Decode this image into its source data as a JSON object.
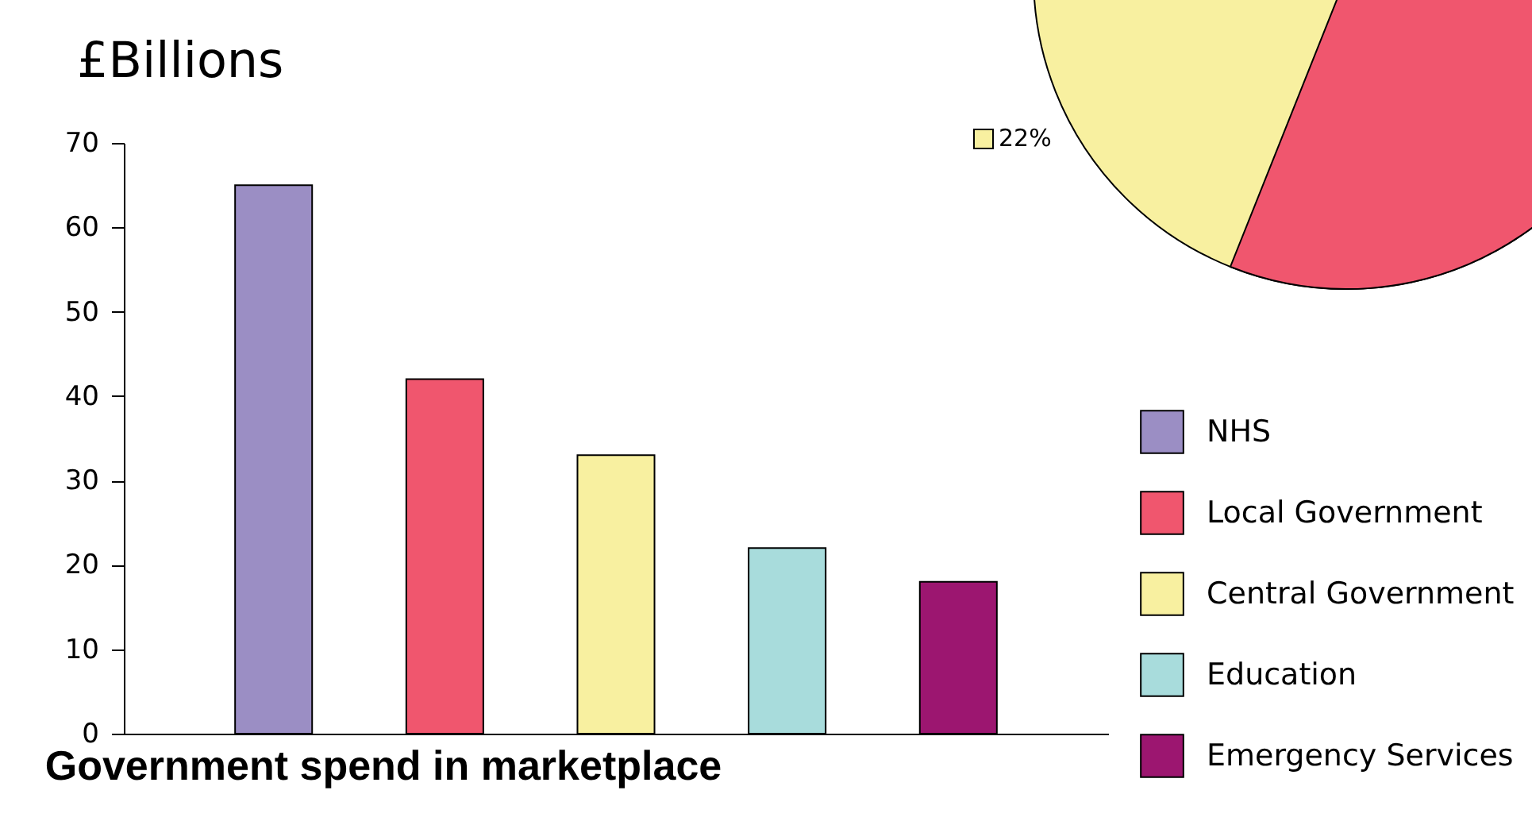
{
  "chart_data": {
    "type": "bar",
    "title": "Government spend in marketplace",
    "ylabel": "£Billions",
    "categories": [
      null,
      null,
      null,
      null,
      null
    ],
    "series": [
      {
        "name": "NHS",
        "color": "#9b8ec4",
        "values": [
          65,
          null,
          null,
          null,
          null
        ]
      },
      {
        "name": "Local Government",
        "color": "#f0566e",
        "values": [
          null,
          42,
          null,
          null,
          null
        ]
      },
      {
        "name": "Central Government",
        "color": "#f8f0a0",
        "values": [
          null,
          null,
          33,
          null,
          null
        ]
      },
      {
        "name": "Education",
        "color": "#a8dcdc",
        "values": [
          null,
          null,
          null,
          22,
          null
        ]
      },
      {
        "name": "Emergency Services",
        "color": "#9c1670",
        "values": [
          null,
          null,
          null,
          null,
          18
        ]
      }
    ],
    "ylim": [
      0,
      70
    ],
    "yticks": [
      0,
      10,
      20,
      30,
      40,
      50,
      60,
      70
    ],
    "grid": false,
    "legend": "right",
    "tick_labels": "y",
    "annotations": [
      "22%"
    ]
  }
}
